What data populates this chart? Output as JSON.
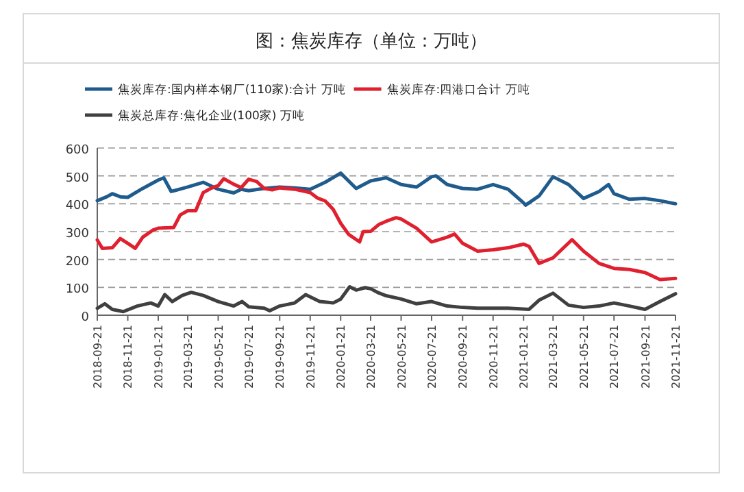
{
  "chart_data": {
    "type": "line",
    "title": "图：焦炭库存（单位：万吨）",
    "legend": "top",
    "grid": "y",
    "line_style": "solid",
    "xlim": [
      "2018-09-21",
      "2021-11-21"
    ],
    "xticks": [
      "2018-09-21",
      "2018-11-21",
      "2019-01-21",
      "2019-03-21",
      "2019-05-21",
      "2019-07-21",
      "2019-09-21",
      "2019-11-21",
      "2020-01-21",
      "2020-03-21",
      "2020-05-21",
      "2020-07-21",
      "2020-09-21",
      "2020-11-21",
      "2021-01-21",
      "2021-03-21",
      "2021-05-21",
      "2021-07-21",
      "2021-09-21",
      "2021-11-21"
    ],
    "ylim": [
      0,
      600
    ],
    "yticks": [
      0,
      100,
      200,
      300,
      400,
      500,
      600
    ],
    "series": [
      {
        "name": "焦炭库存:国内样本钢厂(110家):合计 万吨",
        "color": "#1f5b8c",
        "x": [
          "2018-09-21",
          "2018-10-10",
          "2018-10-21",
          "2018-11-06",
          "2018-11-21",
          "2018-12-21",
          "2019-01-21",
          "2019-02-01",
          "2019-02-16",
          "2019-03-21",
          "2019-04-21",
          "2019-05-21",
          "2019-06-21",
          "2019-07-06",
          "2019-07-21",
          "2019-08-21",
          "2019-09-21",
          "2019-10-21",
          "2019-11-21",
          "2019-12-21",
          "2020-01-21",
          "2020-02-21",
          "2020-03-21",
          "2020-04-21",
          "2020-05-21",
          "2020-06-21",
          "2020-07-21",
          "2020-07-30",
          "2020-08-21",
          "2020-09-21",
          "2020-10-21",
          "2020-11-21",
          "2020-12-21",
          "2021-01-21",
          "2021-01-25",
          "2021-02-21",
          "2021-03-21",
          "2021-04-21",
          "2021-05-21",
          "2021-06-21",
          "2021-07-10",
          "2021-07-21",
          "2021-08-21",
          "2021-09-21",
          "2021-10-21",
          "2021-11-21"
        ],
        "values": [
          411,
          425,
          436,
          425,
          423,
          455,
          485,
          493,
          444,
          460,
          477,
          452,
          439,
          452,
          447,
          455,
          460,
          457,
          452,
          477,
          510,
          455,
          482,
          493,
          469,
          460,
          497,
          500,
          469,
          455,
          452,
          469,
          452,
          403,
          395,
          428,
          497,
          469,
          419,
          444,
          469,
          436,
          416,
          419,
          411,
          400
        ]
      },
      {
        "name": "焦炭库存:四港口合计 万吨",
        "color": "#e0202e",
        "x": [
          "2018-09-21",
          "2018-10-01",
          "2018-10-21",
          "2018-11-06",
          "2018-11-21",
          "2018-12-06",
          "2018-12-21",
          "2019-01-10",
          "2019-01-21",
          "2019-02-21",
          "2019-03-06",
          "2019-03-21",
          "2019-04-06",
          "2019-04-21",
          "2019-05-06",
          "2019-05-21",
          "2019-06-01",
          "2019-06-21",
          "2019-07-06",
          "2019-07-21",
          "2019-08-06",
          "2019-08-21",
          "2019-09-06",
          "2019-09-21",
          "2019-10-21",
          "2019-11-21",
          "2019-12-06",
          "2019-12-21",
          "2020-01-06",
          "2020-01-21",
          "2020-02-06",
          "2020-02-28",
          "2020-03-06",
          "2020-03-21",
          "2020-04-06",
          "2020-04-21",
          "2020-05-11",
          "2020-05-21",
          "2020-06-21",
          "2020-07-21",
          "2020-08-21",
          "2020-09-05",
          "2020-09-21",
          "2020-10-21",
          "2020-11-21",
          "2020-12-21",
          "2021-01-21",
          "2021-02-01",
          "2021-02-21",
          "2021-03-21",
          "2021-04-28",
          "2021-05-21",
          "2021-06-21",
          "2021-07-21",
          "2021-08-21",
          "2021-09-21",
          "2021-10-21",
          "2021-11-21"
        ],
        "values": [
          270,
          240,
          242,
          275,
          258,
          240,
          280,
          305,
          312,
          315,
          360,
          375,
          375,
          440,
          455,
          465,
          490,
          470,
          458,
          488,
          480,
          455,
          450,
          457,
          452,
          440,
          420,
          410,
          380,
          330,
          290,
          263,
          300,
          301,
          325,
          337,
          350,
          345,
          312,
          263,
          280,
          291,
          258,
          230,
          235,
          242,
          255,
          247,
          186,
          206,
          271,
          230,
          186,
          168,
          164,
          153,
          128,
          132
        ]
      },
      {
        "name": "焦炭总库存:焦化企业(100家) 万吨",
        "color": "#404040",
        "x": [
          "2018-09-21",
          "2018-10-06",
          "2018-10-21",
          "2018-11-12",
          "2018-12-10",
          "2019-01-06",
          "2019-01-21",
          "2019-02-03",
          "2019-02-18",
          "2019-03-10",
          "2019-03-28",
          "2019-04-21",
          "2019-05-21",
          "2019-06-21",
          "2019-07-08",
          "2019-07-21",
          "2019-08-21",
          "2019-09-01",
          "2019-09-21",
          "2019-10-21",
          "2019-11-12",
          "2019-12-10",
          "2020-01-06",
          "2020-01-21",
          "2020-02-08",
          "2020-02-21",
          "2020-03-10",
          "2020-03-21",
          "2020-04-06",
          "2020-04-21",
          "2020-05-21",
          "2020-06-21",
          "2020-07-21",
          "2020-08-21",
          "2020-09-21",
          "2020-10-21",
          "2020-11-21",
          "2020-12-21",
          "2021-01-21",
          "2021-02-01",
          "2021-02-21",
          "2021-03-21",
          "2021-04-21",
          "2021-05-21",
          "2021-06-21",
          "2021-07-21",
          "2021-08-21",
          "2021-09-21",
          "2021-10-21",
          "2021-11-21"
        ],
        "values": [
          25,
          41,
          21,
          13,
          33,
          44,
          33,
          74,
          49,
          71,
          82,
          71,
          49,
          33,
          49,
          30,
          25,
          16,
          33,
          44,
          74,
          49,
          44,
          58,
          102,
          90,
          99,
          95,
          80,
          70,
          58,
          41,
          49,
          33,
          28,
          25,
          25,
          25,
          22,
          21,
          54,
          79,
          36,
          28,
          33,
          44,
          33,
          21,
          49,
          77
        ]
      }
    ]
  }
}
